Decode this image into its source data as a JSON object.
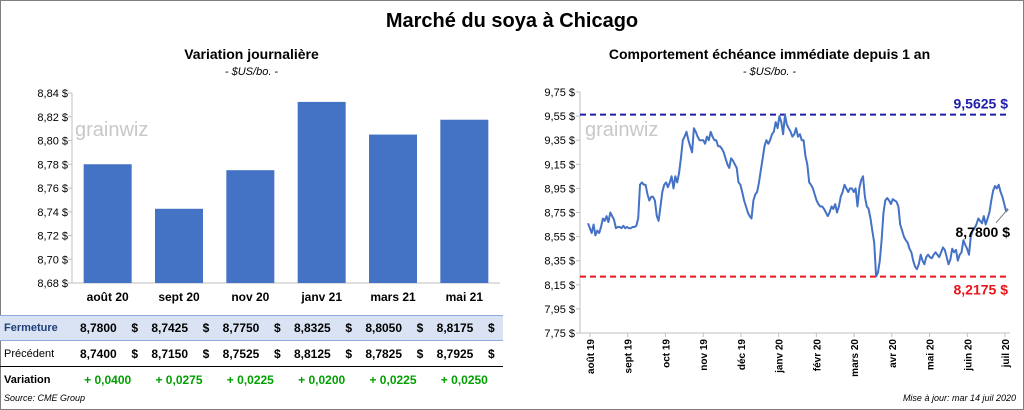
{
  "title": "Marché du soya à Chicago",
  "left": {
    "subtitle": "Variation journalière",
    "unit": "- $US/bo. -",
    "watermark": "grainwiz"
  },
  "right": {
    "subtitle": "Comportement échéance immédiate depuis 1 an",
    "unit": "- $US/bo. -",
    "watermark": "grainwiz",
    "high_label": "9,5625 $",
    "low_label": "8,2175 $",
    "last_label": "8,7800 $"
  },
  "table": {
    "rows": [
      {
        "label": "Fermeture",
        "values": [
          "8,7800",
          "8,7425",
          "8,7750",
          "8,8325",
          "8,8050",
          "8,8175"
        ],
        "unit": "$"
      },
      {
        "label": "Précédent",
        "values": [
          "8,7400",
          "8,7150",
          "8,7525",
          "8,8125",
          "8,7825",
          "8,7925"
        ],
        "unit": "$"
      },
      {
        "label": "Variation",
        "values": [
          "+ 0,0400",
          "+ 0,0275",
          "+ 0,0225",
          "+ 0,0200",
          "+ 0,0225",
          "+ 0,0250"
        ]
      }
    ]
  },
  "footer": {
    "source": "Source: CME Group",
    "updated": "Mise à jour: mar 14 juil 2020"
  },
  "colors": {
    "bar": "#4472c4",
    "line": "#4472c4",
    "high": "#1f1fa8",
    "low": "#e8161b",
    "fermeture_bg": "#dae3f3",
    "variation_pos": "#00a000"
  },
  "chart_data": [
    {
      "type": "bar",
      "categories": [
        "août 20",
        "sept 20",
        "nov 20",
        "janv 21",
        "mars 21",
        "mai 21"
      ],
      "values": [
        8.78,
        8.7425,
        8.775,
        8.8325,
        8.805,
        8.8175
      ],
      "ylim": [
        8.68,
        8.84
      ],
      "yticks": [
        "8,68 $",
        "8,70 $",
        "8,72 $",
        "8,74 $",
        "8,76 $",
        "8,78 $",
        "8,80 $",
        "8,82 $",
        "8,84 $"
      ],
      "title": "Variation journalière",
      "ylabel": "- $US/bo. -",
      "grid": false
    },
    {
      "type": "line",
      "x_labels": [
        "août 19",
        "sept 19",
        "oct 19",
        "nov 19",
        "déc 19",
        "janv 20",
        "févr 20",
        "mars 20",
        "avr 20",
        "mai 20",
        "juin 20",
        "juil 20"
      ],
      "ylim": [
        7.75,
        9.75
      ],
      "yticks": [
        "7,75 $",
        "7,95 $",
        "8,15 $",
        "8,35 $",
        "8,55 $",
        "8,75 $",
        "8,95 $",
        "9,15 $",
        "9,35 $",
        "9,55 $",
        "9,75 $"
      ],
      "title": "Comportement échéance immédiate depuis 1 an",
      "ylabel": "- $US/bo. -",
      "high": 9.5625,
      "low": 8.2175,
      "last": 8.78,
      "grid": false,
      "series": [
        {
          "values": [
            8.66,
            8.62,
            8.58,
            8.65,
            8.56,
            8.6,
            8.58,
            8.63,
            8.7,
            8.68,
            8.72,
            8.67,
            8.75,
            8.72,
            8.69,
            8.62,
            8.63,
            8.63,
            8.62,
            8.64,
            8.62,
            8.63,
            8.62,
            8.62,
            8.63,
            8.63,
            8.64,
            8.7,
            8.98,
            9.0,
            8.98,
            8.98,
            8.9,
            8.85,
            8.88,
            8.88,
            8.85,
            8.72,
            8.68,
            8.8,
            8.92,
            8.98,
            9.0,
            8.96,
            9.0,
            9.05,
            8.95,
            9.05,
            9.0,
            9.08,
            9.2,
            9.35,
            9.38,
            9.42,
            9.35,
            9.3,
            9.25,
            9.45,
            9.42,
            9.38,
            9.35,
            9.35,
            9.35,
            9.32,
            9.38,
            9.35,
            9.42,
            9.38,
            9.35,
            9.35,
            9.3,
            9.3,
            9.28,
            9.25,
            9.2,
            9.15,
            9.12,
            9.2,
            9.18,
            9.15,
            9.12,
            9.0,
            8.98,
            8.92,
            8.85,
            8.8,
            8.75,
            8.72,
            8.7,
            8.85,
            8.9,
            8.92,
            9.0,
            9.1,
            9.2,
            9.3,
            9.35,
            9.32,
            9.35,
            9.4,
            9.42,
            9.5,
            9.45,
            9.55,
            9.5,
            9.4,
            9.56,
            9.48,
            9.45,
            9.42,
            9.38,
            9.4,
            9.45,
            9.38,
            9.4,
            9.35,
            9.35,
            9.22,
            9.15,
            9.0,
            8.98,
            8.95,
            8.9,
            8.85,
            8.82,
            8.8,
            8.8,
            8.78,
            8.75,
            8.72,
            8.75,
            8.8,
            8.78,
            8.82,
            8.75,
            8.8,
            8.88,
            8.92,
            8.98,
            8.95,
            8.92,
            8.95,
            8.95,
            8.92,
            8.95,
            8.8,
            8.95,
            9.02,
            9.05,
            8.88,
            8.8,
            8.78,
            8.7,
            8.6,
            8.5,
            8.22,
            8.25,
            8.35,
            8.52,
            8.75,
            8.85,
            8.87,
            8.85,
            8.82,
            8.86,
            8.85,
            8.84,
            8.8,
            8.65,
            8.6,
            8.55,
            8.52,
            8.5,
            8.45,
            8.42,
            8.35,
            8.3,
            8.28,
            8.32,
            8.4,
            8.35,
            8.32,
            8.38,
            8.4,
            8.38,
            8.37,
            8.4,
            8.42,
            8.4,
            8.38,
            8.42,
            8.46,
            8.44,
            8.38,
            8.32,
            8.36,
            8.45,
            8.42,
            8.44,
            8.35,
            8.4,
            8.42,
            8.52,
            8.48,
            8.45,
            8.4,
            8.55,
            8.6,
            8.62,
            8.65,
            8.7,
            8.68,
            8.66,
            8.72,
            8.65,
            8.7,
            8.75,
            8.85,
            8.93,
            8.97,
            8.95,
            8.98,
            8.92,
            8.88,
            8.82,
            8.76,
            8.78
          ]
        }
      ]
    }
  ]
}
